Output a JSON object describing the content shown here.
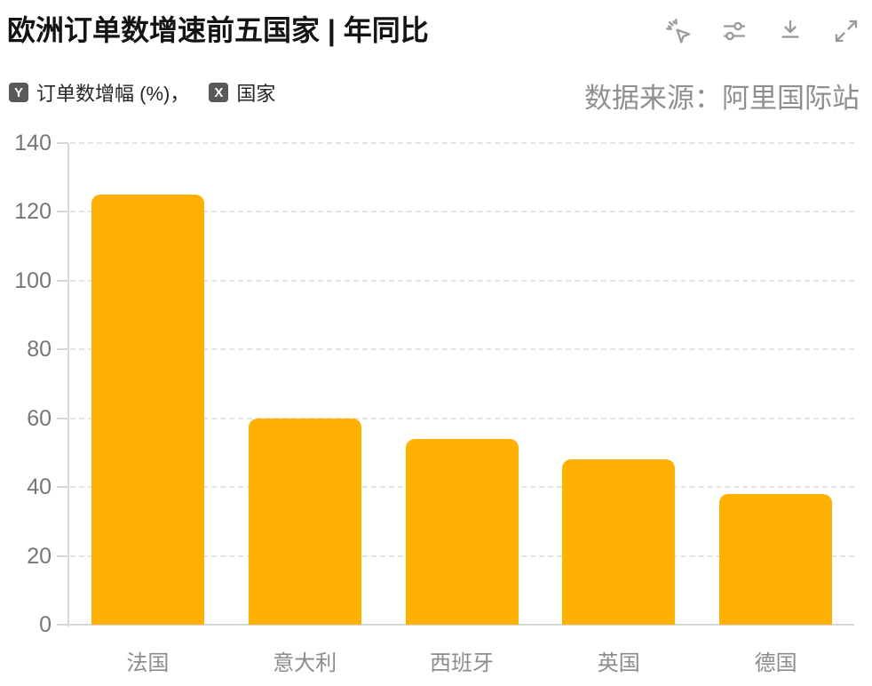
{
  "header": {
    "title": "欧洲订单数增速前五国家 | 年同比",
    "toolbar_icons": [
      "magic-cursor-icon",
      "sliders-icon",
      "download-icon",
      "expand-icon"
    ]
  },
  "legend": {
    "y_badge": "Y",
    "y_label": "订单数增幅 (%)",
    "separator": "，",
    "x_badge": "X",
    "x_label": "国家"
  },
  "source": "数据来源：阿里国际站",
  "colors": {
    "bar": "#FFB000",
    "badge_bg": "#595959",
    "axis": "#d7d7d7",
    "grid": "#e4e4e4",
    "icon": "#999999",
    "title_text": "#141414",
    "muted_text": "#8f8f8f"
  },
  "chart_data": {
    "type": "bar",
    "title": "欧洲订单数增速前五国家 | 年同比",
    "categories": [
      "法国",
      "意大利",
      "西班牙",
      "英国",
      "德国"
    ],
    "values": [
      125,
      60,
      54,
      48,
      38
    ],
    "xlabel": "国家",
    "ylabel": "订单数增幅 (%)",
    "ylim": [
      0,
      140
    ],
    "yticks": [
      0,
      20,
      40,
      60,
      80,
      100,
      120,
      140
    ],
    "grid": "horizontal-dashed",
    "legend_position": "none",
    "bar_color": "#FFB000"
  }
}
